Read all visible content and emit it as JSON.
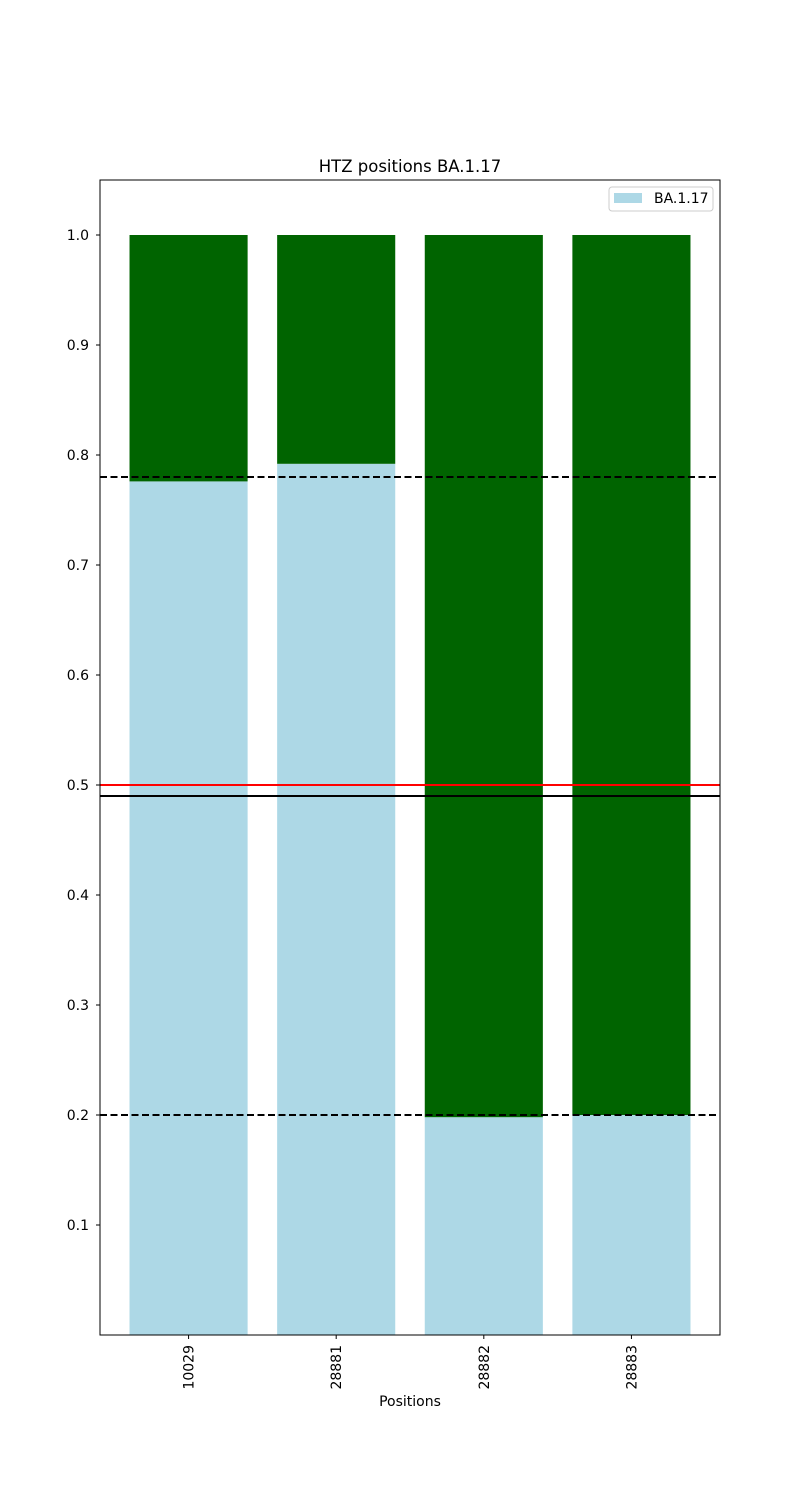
{
  "chart_data": {
    "type": "bar",
    "title": "HTZ positions BA.1.17",
    "xlabel": "Positions",
    "ylabel": "",
    "categories": [
      "10029",
      "28881",
      "28882",
      "28883"
    ],
    "series": [
      {
        "name": "BA.1.17",
        "values": [
          0.776,
          0.792,
          0.198,
          0.2
        ],
        "color": "#add8e6"
      },
      {
        "values": [
          0.224,
          0.208,
          0.802,
          0.8
        ],
        "color": "#006400"
      }
    ],
    "ylim": [
      0,
      1.05
    ],
    "yticks": [
      "0.1",
      "0.2",
      "0.3",
      "0.4",
      "0.5",
      "0.6",
      "0.7",
      "0.8",
      "0.9",
      "1.0"
    ],
    "reference_lines": [
      {
        "y": 0.78,
        "style": "dashed",
        "color": "#000000"
      },
      {
        "y": 0.2,
        "style": "dashed",
        "color": "#000000"
      },
      {
        "y": 0.5,
        "style": "solid",
        "color": "#ff0000"
      },
      {
        "y": 0.49,
        "style": "solid",
        "color": "#000000"
      }
    ],
    "grid": false,
    "legend_position": "top-right"
  }
}
